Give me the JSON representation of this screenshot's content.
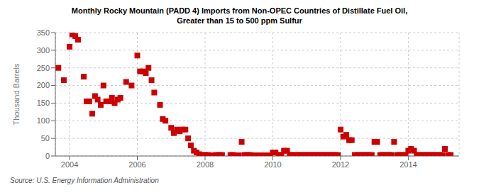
{
  "chart_data": {
    "type": "scatter",
    "title": "Monthly Rocky Mountain (PADD 4) Imports from Non-OPEC Countries of Distillate Fuel Oil,\nGreater than 15 to 500 ppm Sulfur",
    "y_label": "Thousand Barrels",
    "annotation": "Source: U.S. Energy Information Administration",
    "color": "#cc0000",
    "marker": "square",
    "grid": true,
    "xlim": [
      2003.58,
      2015.5
    ],
    "xticks": [
      2004,
      2006,
      2008,
      2010,
      2012,
      2014
    ],
    "ylim": [
      0,
      350
    ],
    "yticks": [
      0,
      50,
      100,
      150,
      200,
      250,
      300,
      350
    ],
    "x": [
      2003.67,
      2003.83,
      2004.0,
      2004.08,
      2004.17,
      2004.25,
      2004.42,
      2004.5,
      2004.58,
      2004.67,
      2004.75,
      2004.83,
      2004.92,
      2005.0,
      2005.08,
      2005.17,
      2005.25,
      2005.33,
      2005.42,
      2005.5,
      2005.67,
      2005.83,
      2006.0,
      2006.08,
      2006.17,
      2006.25,
      2006.33,
      2006.42,
      2006.5,
      2006.67,
      2006.75,
      2006.83,
      2007.0,
      2007.08,
      2007.17,
      2007.25,
      2007.33,
      2007.42,
      2007.5,
      2007.58,
      2007.67,
      2007.75,
      2007.83,
      2007.92,
      2008.0,
      2008.08,
      2008.17,
      2008.25,
      2008.33,
      2008.42,
      2008.5,
      2008.75,
      2008.83,
      2008.92,
      2009.0,
      2009.08,
      2009.17,
      2009.25,
      2009.33,
      2009.42,
      2009.5,
      2009.58,
      2009.67,
      2009.75,
      2009.83,
      2009.92,
      2010.0,
      2010.08,
      2010.17,
      2010.25,
      2010.33,
      2010.42,
      2010.5,
      2010.58,
      2010.67,
      2010.75,
      2010.83,
      2010.92,
      2011.0,
      2011.08,
      2011.17,
      2011.25,
      2011.33,
      2011.42,
      2011.5,
      2011.58,
      2011.67,
      2011.75,
      2011.83,
      2011.92,
      2012.0,
      2012.08,
      2012.17,
      2012.25,
      2012.33,
      2012.42,
      2012.5,
      2012.58,
      2012.67,
      2012.75,
      2012.83,
      2012.92,
      2013.0,
      2013.08,
      2013.17,
      2013.25,
      2013.33,
      2013.42,
      2013.5,
      2013.58,
      2013.67,
      2013.75,
      2013.83,
      2013.92,
      2014.0,
      2014.08,
      2014.17,
      2014.25,
      2014.33,
      2014.42,
      2014.5,
      2014.58,
      2014.67,
      2014.75,
      2014.83,
      2014.92,
      2015.0,
      2015.08,
      2015.17,
      2015.25
    ],
    "values": [
      250,
      215,
      310,
      345,
      340,
      330,
      225,
      155,
      155,
      120,
      170,
      160,
      145,
      200,
      155,
      155,
      165,
      150,
      160,
      165,
      210,
      200,
      285,
      240,
      240,
      235,
      250,
      215,
      180,
      145,
      105,
      100,
      80,
      65,
      75,
      70,
      75,
      75,
      50,
      30,
      15,
      10,
      5,
      3,
      3,
      3,
      2,
      2,
      3,
      3,
      3,
      3,
      3,
      2,
      2,
      40,
      3,
      3,
      3,
      2,
      2,
      2,
      2,
      2,
      2,
      2,
      10,
      10,
      3,
      3,
      15,
      15,
      3,
      3,
      3,
      3,
      3,
      3,
      3,
      3,
      3,
      3,
      3,
      3,
      3,
      3,
      3,
      3,
      3,
      3,
      75,
      55,
      60,
      45,
      45,
      3,
      3,
      3,
      3,
      3,
      3,
      3,
      40,
      40,
      3,
      3,
      3,
      3,
      3,
      40,
      3,
      3,
      3,
      3,
      15,
      20,
      15,
      3,
      3,
      3,
      3,
      3,
      3,
      3,
      3,
      3,
      3,
      20,
      3,
      3
    ]
  }
}
